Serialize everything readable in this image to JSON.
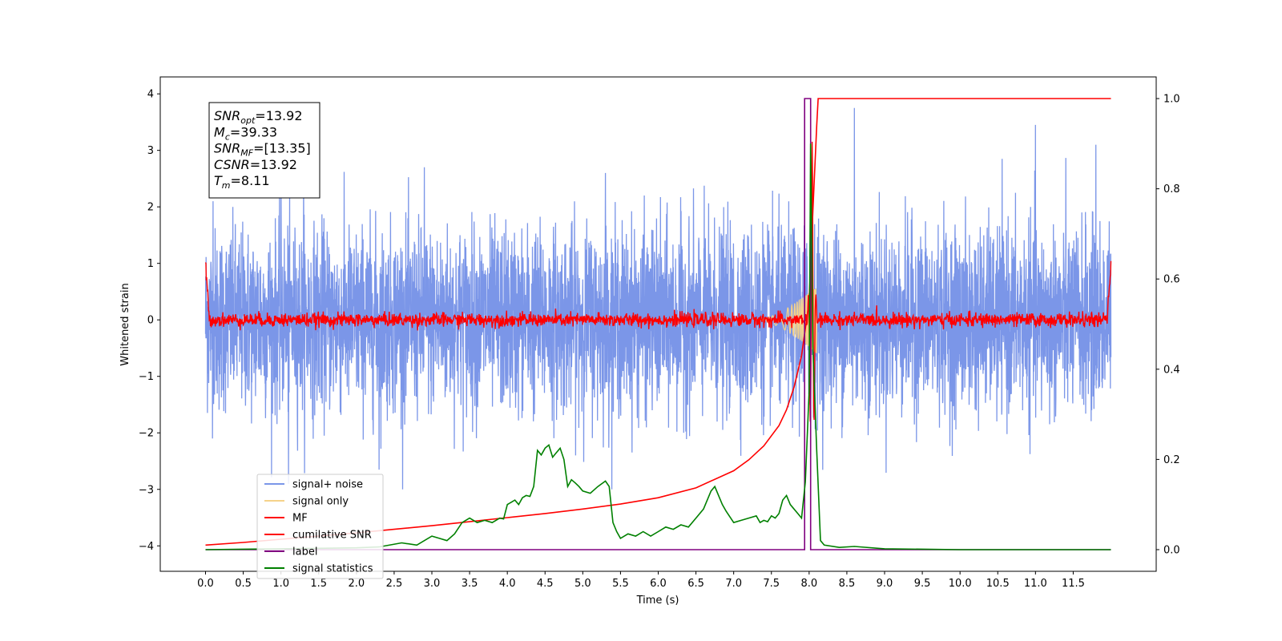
{
  "chart_data": {
    "type": "line",
    "xlabel": "Time (s)",
    "ylabel": "Whitened strain",
    "xlim": [
      -0.6,
      12.6
    ],
    "ylim": [
      -4.45,
      4.3
    ],
    "y2lim": [
      -0.048,
      1.048
    ],
    "x_ticks": [
      "0.0",
      "0.5",
      "1.0",
      "1.5",
      "2.0",
      "2.5",
      "3.0",
      "3.5",
      "4.0",
      "4.5",
      "5.0",
      "5.5",
      "6.0",
      "6.5",
      "7.0",
      "7.5",
      "8.0",
      "8.5",
      "9.0",
      "9.5",
      "10.0",
      "10.5",
      "11.0",
      "11.5"
    ],
    "y_ticks": [
      "4",
      "3",
      "2",
      "1",
      "0",
      "−1",
      "−2",
      "−3",
      "−4"
    ],
    "y2_ticks": [
      "1.0",
      "0.8",
      "0.6",
      "0.4",
      "0.2",
      "0.0"
    ],
    "annotation": {
      "lines": [
        {
          "main": "SNR",
          "sub": "opt",
          "value": "=13.92"
        },
        {
          "main": "M",
          "sub": "c",
          "value": "=39.33"
        },
        {
          "main": "SNR",
          "sub": "MF",
          "value": "=[13.35]"
        },
        {
          "main": "CSNR",
          "sub": "",
          "value": "=13.92"
        },
        {
          "main": "T",
          "sub": "m",
          "value": "=8.11"
        }
      ]
    },
    "legend": {
      "placement": "lower-left",
      "entries": [
        {
          "label": "signal+ noise",
          "color": "#7b96e8"
        },
        {
          "label": "signal only",
          "color": "#f5d28a"
        },
        {
          "label": "MF",
          "color": "#ff0000"
        },
        {
          "label": "cumilative SNR",
          "color": "#ff0000"
        },
        {
          "label": "label",
          "color": "#800080"
        },
        {
          "label": "signal statistics",
          "color": "#008000"
        }
      ]
    },
    "series": [
      {
        "name": "signal+ noise",
        "axis": "left",
        "kind": "noise",
        "x_range": [
          0,
          12
        ],
        "std": 0.8,
        "peaks": [
          [
            0.1,
            2.1
          ],
          [
            1.0,
            2.5
          ],
          [
            1.3,
            2.9
          ],
          [
            2.9,
            2.7
          ],
          [
            5.3,
            2.6
          ],
          [
            8.6,
            3.75
          ],
          [
            11.0,
            3.45
          ],
          [
            11.8,
            3.1
          ],
          [
            1.1,
            -2.9
          ],
          [
            2.3,
            -2.65
          ]
        ]
      },
      {
        "name": "signal only",
        "axis": "left",
        "kind": "chirp",
        "x_range": [
          7.3,
          8.1
        ],
        "peak_amp": 0.6
      },
      {
        "name": "MF",
        "axis": "left",
        "kind": "mf",
        "x_range": [
          0,
          12
        ],
        "std": 0.06,
        "edge_values": [
          1.0,
          1.0
        ],
        "peak": [
          8.04,
          3.1
        ]
      },
      {
        "name": "cumilative SNR",
        "axis": "right",
        "x": [
          0,
          0.5,
          1,
          1.5,
          2,
          2.5,
          3,
          3.5,
          4,
          4.5,
          5,
          5.5,
          6,
          6.5,
          7,
          7.2,
          7.4,
          7.6,
          7.7,
          7.8,
          7.9,
          8.0,
          8.05,
          8.1,
          8.12,
          12
        ],
        "y": [
          0.01,
          0.016,
          0.023,
          0.03,
          0.037,
          0.045,
          0.053,
          0.062,
          0.071,
          0.08,
          0.09,
          0.101,
          0.115,
          0.137,
          0.175,
          0.199,
          0.23,
          0.275,
          0.31,
          0.36,
          0.43,
          0.55,
          0.75,
          0.94,
          1.0,
          1.0
        ]
      },
      {
        "name": "label",
        "axis": "right",
        "x": [
          0,
          7.94,
          7.94,
          8.02,
          8.02,
          8.11,
          8.11,
          12
        ],
        "y": [
          0,
          0,
          1,
          1,
          0,
          0,
          0,
          0
        ]
      },
      {
        "name": "signal statistics",
        "axis": "right",
        "x": [
          0,
          0.5,
          1,
          1.5,
          2,
          2.3,
          2.6,
          2.8,
          3.0,
          3.1,
          3.2,
          3.3,
          3.4,
          3.5,
          3.6,
          3.7,
          3.8,
          3.9,
          3.95,
          4.0,
          4.05,
          4.1,
          4.15,
          4.2,
          4.25,
          4.3,
          4.35,
          4.4,
          4.45,
          4.5,
          4.55,
          4.6,
          4.65,
          4.7,
          4.75,
          4.8,
          4.85,
          4.9,
          4.95,
          5.0,
          5.1,
          5.2,
          5.3,
          5.35,
          5.4,
          5.45,
          5.5,
          5.6,
          5.7,
          5.8,
          5.9,
          6.0,
          6.1,
          6.2,
          6.3,
          6.4,
          6.5,
          6.6,
          6.7,
          6.75,
          6.8,
          6.85,
          6.9,
          7.0,
          7.1,
          7.2,
          7.3,
          7.35,
          7.4,
          7.45,
          7.5,
          7.55,
          7.6,
          7.65,
          7.7,
          7.75,
          7.8,
          7.85,
          7.9,
          7.95,
          8.0,
          8.02,
          8.05,
          8.1,
          8.15,
          8.2,
          8.4,
          8.6,
          9.0,
          10,
          11,
          12
        ],
        "y": [
          0,
          0.001,
          0.002,
          0.003,
          0.004,
          0.006,
          0.015,
          0.01,
          0.03,
          0.025,
          0.02,
          0.035,
          0.06,
          0.07,
          0.06,
          0.065,
          0.06,
          0.07,
          0.068,
          0.1,
          0.105,
          0.11,
          0.1,
          0.115,
          0.12,
          0.118,
          0.14,
          0.22,
          0.21,
          0.225,
          0.232,
          0.205,
          0.215,
          0.225,
          0.2,
          0.14,
          0.155,
          0.148,
          0.14,
          0.13,
          0.125,
          0.14,
          0.152,
          0.14,
          0.06,
          0.04,
          0.025,
          0.035,
          0.03,
          0.04,
          0.03,
          0.04,
          0.05,
          0.045,
          0.055,
          0.05,
          0.07,
          0.09,
          0.13,
          0.14,
          0.12,
          0.1,
          0.085,
          0.06,
          0.065,
          0.07,
          0.075,
          0.06,
          0.065,
          0.062,
          0.075,
          0.07,
          0.08,
          0.11,
          0.12,
          0.1,
          0.09,
          0.08,
          0.07,
          0.15,
          0.35,
          0.9,
          0.45,
          0.22,
          0.02,
          0.01,
          0.005,
          0.007,
          0.002,
          0,
          0,
          0
        ]
      }
    ]
  }
}
